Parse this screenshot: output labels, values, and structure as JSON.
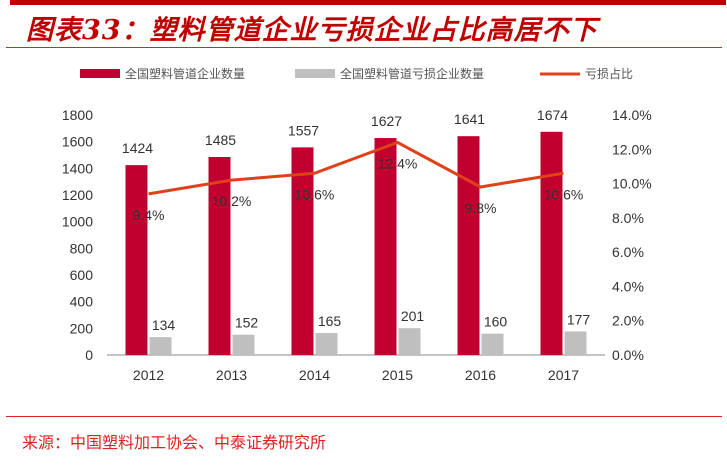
{
  "title": "图表33：塑料管道企业亏损企业占比高居不下",
  "source": "来源：中国塑料加工协会、中泰证券研究所",
  "chart_data": {
    "type": "bar",
    "categories": [
      "2012",
      "2013",
      "2014",
      "2015",
      "2016",
      "2017"
    ],
    "series": [
      {
        "name": "全国塑料管道企业数量",
        "type": "bar",
        "axis": "left",
        "color": "#c0002f",
        "values": [
          1424,
          1485,
          1557,
          1627,
          1641,
          1674
        ]
      },
      {
        "name": "全国塑料管道亏损企业数量",
        "type": "bar",
        "axis": "left",
        "color": "#bfbfbf",
        "values": [
          134,
          152,
          165,
          201,
          160,
          177
        ]
      },
      {
        "name": "亏损占比",
        "type": "line",
        "axis": "right",
        "color": "#e0401a",
        "values": [
          9.4,
          10.2,
          10.6,
          12.4,
          9.8,
          10.6
        ],
        "labels": [
          "9.4%",
          "10.2%",
          "10.6%",
          "12.4%",
          "9.8%",
          "10.6%"
        ]
      }
    ],
    "ylim_left": [
      0,
      1800
    ],
    "yticks_left": [
      "0",
      "200",
      "400",
      "600",
      "800",
      "1000",
      "1200",
      "1400",
      "1600",
      "1800"
    ],
    "ylim_right": [
      0,
      14
    ],
    "yticks_right": [
      "0.0%",
      "2.0%",
      "4.0%",
      "6.0%",
      "8.0%",
      "10.0%",
      "12.0%",
      "14.0%"
    ],
    "legend": "top",
    "grid": false
  }
}
